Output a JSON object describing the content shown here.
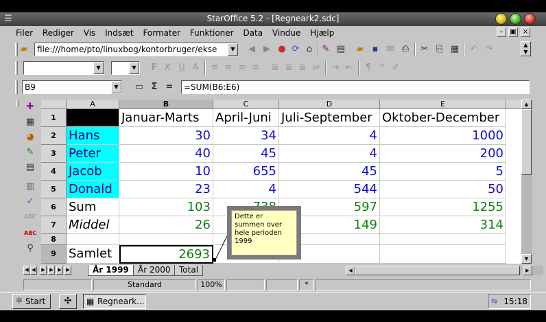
{
  "window": {
    "title": "StarOffice 5.2 - [Regneark2.sdc]",
    "menu_glyph": "☰"
  },
  "menu": {
    "items": [
      "Filer",
      "Rediger",
      "Vis",
      "Indsæt",
      "Formater",
      "Funktioner",
      "Data",
      "Vindue",
      "Hjælp"
    ]
  },
  "toolbar": {
    "url": "file:///home/pto/linuxbog/kontorbruger/ekse"
  },
  "formula_bar": {
    "cell_ref": "B9",
    "sigma": "Σ",
    "equals": "=",
    "formula": "=SUM(B6:E6)"
  },
  "grid": {
    "columns": [
      "A",
      "B",
      "C",
      "D",
      "E"
    ],
    "rows": [
      "1",
      "2",
      "3",
      "4",
      "5",
      "6",
      "7",
      "8",
      "9"
    ],
    "headers": [
      "Januar-Marts",
      "April-Juni",
      "Juli-September",
      "Oktober-December"
    ],
    "data_rows": [
      {
        "label": "Hans",
        "values": [
          "30",
          "34",
          "4",
          "1000"
        ]
      },
      {
        "label": "Peter",
        "values": [
          "40",
          "45",
          "4",
          "200"
        ]
      },
      {
        "label": "Jacob",
        "values": [
          "10",
          "655",
          "45",
          "5"
        ]
      },
      {
        "label": "Donald",
        "values": [
          "23",
          "4",
          "544",
          "50"
        ]
      }
    ],
    "sum_row": {
      "label": "Sum",
      "values": [
        "103",
        "738",
        "597",
        "1255"
      ]
    },
    "mean_row": {
      "label": "Middel",
      "values": [
        "26",
        "",
        "149",
        "314"
      ]
    },
    "total_row": {
      "label": "Samlet",
      "value": "2693"
    }
  },
  "comment": {
    "lines": [
      "Dette er",
      "summen over",
      "hele perioden",
      "1999"
    ]
  },
  "sheet_tabs": [
    "År 1999",
    "År 2000",
    "Total"
  ],
  "status": {
    "style": "Standard",
    "zoom": "100%",
    "mode": "*"
  },
  "taskbar": {
    "start_label": "Start",
    "task_label": "Regneark...",
    "clock": "15:18"
  }
}
